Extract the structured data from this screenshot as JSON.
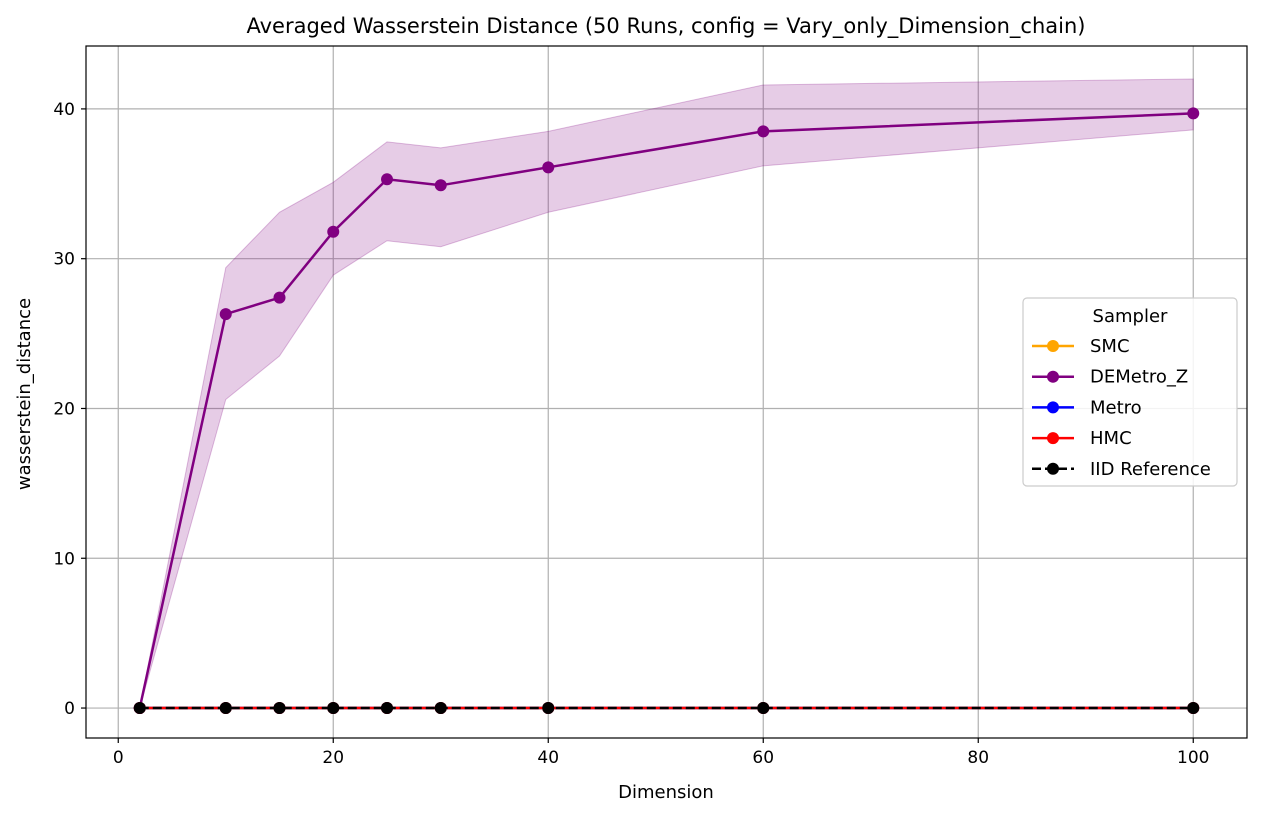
{
  "chart_data": {
    "type": "line",
    "title": "Averaged Wasserstein Distance (50 Runs, config = Vary_only_Dimension_chain)",
    "xlabel": "Dimension",
    "ylabel": "wasserstein_distance",
    "xlim": [
      -3,
      105
    ],
    "ylim": [
      -2,
      44.2
    ],
    "xticks": [
      0,
      20,
      40,
      60,
      80,
      100
    ],
    "yticks": [
      0,
      10,
      20,
      30,
      40
    ],
    "grid": true,
    "legend": {
      "title": "Sampler",
      "placement": "center-right"
    },
    "x": [
      2,
      10,
      15,
      20,
      25,
      30,
      40,
      60,
      100
    ],
    "series": [
      {
        "name": "SMC",
        "color": "#ffa500",
        "linestyle": "solid",
        "marker": "circle",
        "values": [
          0,
          0,
          0,
          0,
          0,
          0,
          0,
          0,
          0
        ]
      },
      {
        "name": "DEMetro_Z",
        "color": "#800080",
        "linestyle": "solid",
        "marker": "circle",
        "values": [
          0,
          26.3,
          27.4,
          31.8,
          35.3,
          34.9,
          36.1,
          38.5,
          39.7
        ],
        "band": {
          "color": "#800080",
          "lower": [
            0,
            20.6,
            23.5,
            28.9,
            31.2,
            30.8,
            33.1,
            36.2,
            38.6
          ],
          "upper": [
            0,
            29.4,
            33.1,
            35.1,
            37.8,
            37.4,
            38.5,
            41.6,
            42.0
          ]
        }
      },
      {
        "name": "Metro",
        "color": "#0000ff",
        "linestyle": "solid",
        "marker": "circle",
        "values": [
          0,
          0,
          0,
          0,
          0,
          0,
          0,
          0,
          0
        ]
      },
      {
        "name": "HMC",
        "color": "#ff0000",
        "linestyle": "solid",
        "marker": "circle",
        "values": [
          0,
          0,
          0,
          0,
          0,
          0,
          0,
          0,
          0
        ]
      },
      {
        "name": "IID Reference",
        "color": "#000000",
        "linestyle": "dashed",
        "marker": "circle",
        "values": [
          0,
          0,
          0,
          0,
          0,
          0,
          0,
          0,
          0
        ]
      }
    ]
  }
}
